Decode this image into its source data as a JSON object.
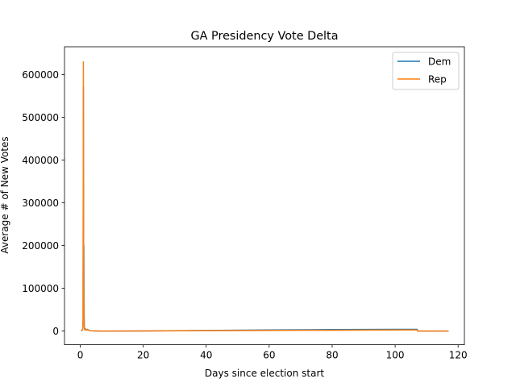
{
  "chart_data": {
    "type": "line",
    "title": "GA Presidency Vote Delta",
    "xlabel": "Days since election start",
    "ylabel": "Average # of New Votes",
    "xlim": [
      -5,
      122
    ],
    "ylim": [
      -32000,
      665000
    ],
    "xticks": [
      0,
      20,
      40,
      60,
      80,
      100,
      120
    ],
    "yticks": [
      0,
      100000,
      200000,
      300000,
      400000,
      500000,
      600000
    ],
    "grid": false,
    "legend_position": "upper right",
    "series": [
      {
        "name": "Dem",
        "color": "#1f77b4",
        "x": [
          0.3,
          0.6,
          0.8,
          0.9,
          1.0,
          1.05,
          1.1,
          1.15,
          1.2,
          1.3,
          1.4,
          1.6,
          1.9,
          2.3,
          3.0,
          4.0,
          6.0,
          10.0,
          20.0,
          40.0,
          60.0,
          80.0,
          100.0,
          107.0,
          107.2,
          110.0,
          117.0
        ],
        "y": [
          0,
          2000,
          5000,
          20000,
          570000,
          330000,
          160000,
          200000,
          60000,
          10000,
          3000,
          6000,
          2000,
          4000,
          1000,
          500,
          0,
          0,
          200,
          1500,
          2500,
          3500,
          4000,
          4000,
          0,
          0,
          0
        ]
      },
      {
        "name": "Rep",
        "color": "#ff7f0e",
        "x": [
          0.3,
          0.6,
          0.8,
          0.9,
          1.0,
          1.05,
          1.1,
          1.15,
          1.2,
          1.3,
          1.4,
          1.6,
          1.9,
          2.3,
          3.0,
          4.0,
          6.0,
          10.0,
          20.0,
          40.0,
          60.0,
          80.0,
          100.0,
          107.0,
          107.2,
          110.0,
          117.0
        ],
        "y": [
          0,
          3000,
          6000,
          25000,
          630000,
          300000,
          120000,
          60000,
          20000,
          8000,
          3000,
          5000,
          2000,
          3000,
          1000,
          500,
          0,
          0,
          200,
          1000,
          1500,
          2000,
          2500,
          2500,
          0,
          0,
          0
        ]
      }
    ]
  }
}
